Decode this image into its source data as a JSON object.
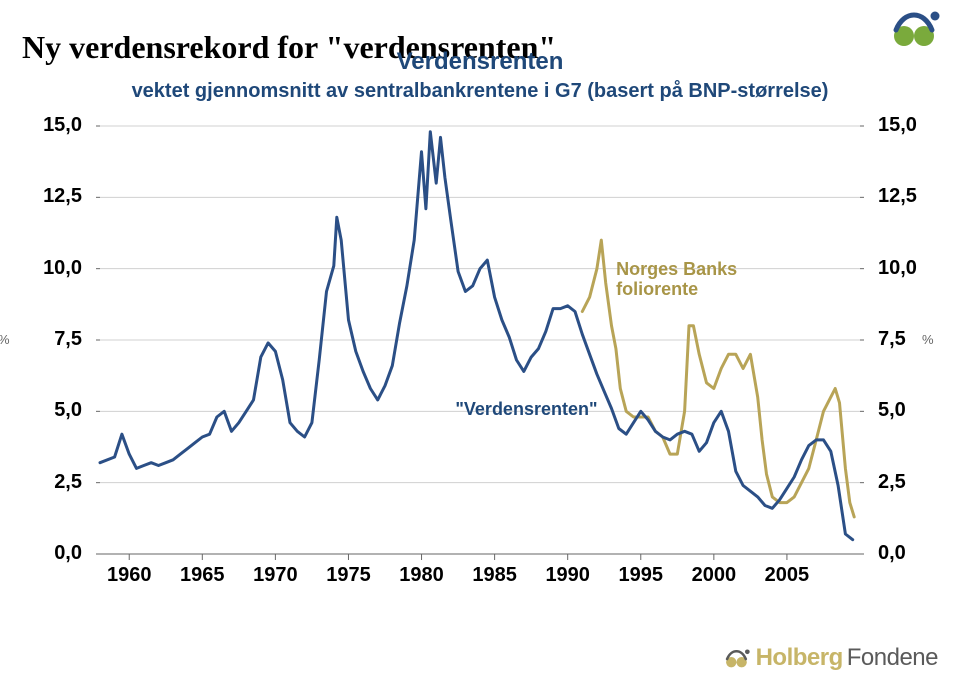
{
  "page_title": "Ny verdensrekord for \"verdensrenten\"",
  "chart": {
    "type": "line",
    "title": "Verdensrenten",
    "subtitle": "vektet gjennomsnitt av sentralbankrentene i G7 (basert på BNP-størrelse)",
    "background_color": "#ffffff",
    "grid_color": "#d0d0d0",
    "axis_color": "#666666",
    "xlim_year": [
      1958,
      2010
    ],
    "ylim": [
      0,
      15
    ],
    "ytick_step": 2.5,
    "yticks": [
      "0,0",
      "2,5",
      "5,0",
      "7,5",
      "10,0",
      "12,5",
      "15,0"
    ],
    "xticks_year": [
      1960,
      1965,
      1970,
      1975,
      1980,
      1985,
      1990,
      1995,
      2000,
      2005
    ],
    "y_unit_left": "%",
    "y_unit_right": "%",
    "title_fontsize": 24,
    "subtitle_fontsize": 20,
    "tick_fontsize": 20,
    "series": [
      {
        "name": "\"Verdensrenten\"",
        "label": "\"Verdensrenten\"",
        "color": "#2b4f86",
        "line_width": 3,
        "data": [
          [
            1958,
            3.2
          ],
          [
            1959,
            3.4
          ],
          [
            1959.5,
            4.2
          ],
          [
            1960,
            3.5
          ],
          [
            1960.5,
            3.0
          ],
          [
            1961,
            3.1
          ],
          [
            1961.5,
            3.2
          ],
          [
            1962,
            3.1
          ],
          [
            1962.5,
            3.2
          ],
          [
            1963,
            3.3
          ],
          [
            1963.5,
            3.5
          ],
          [
            1964,
            3.7
          ],
          [
            1964.5,
            3.9
          ],
          [
            1965,
            4.1
          ],
          [
            1965.5,
            4.2
          ],
          [
            1966,
            4.8
          ],
          [
            1966.5,
            5.0
          ],
          [
            1967,
            4.3
          ],
          [
            1967.5,
            4.6
          ],
          [
            1968,
            5.0
          ],
          [
            1968.5,
            5.4
          ],
          [
            1969,
            6.9
          ],
          [
            1969.5,
            7.4
          ],
          [
            1970,
            7.1
          ],
          [
            1970.5,
            6.1
          ],
          [
            1971,
            4.6
          ],
          [
            1971.5,
            4.3
          ],
          [
            1972,
            4.1
          ],
          [
            1972.5,
            4.6
          ],
          [
            1973,
            6.8
          ],
          [
            1973.5,
            9.2
          ],
          [
            1974,
            10.1
          ],
          [
            1974.2,
            11.8
          ],
          [
            1974.5,
            11.0
          ],
          [
            1975,
            8.2
          ],
          [
            1975.5,
            7.1
          ],
          [
            1976,
            6.4
          ],
          [
            1976.5,
            5.8
          ],
          [
            1977,
            5.4
          ],
          [
            1977.5,
            5.9
          ],
          [
            1978,
            6.6
          ],
          [
            1978.5,
            8.1
          ],
          [
            1979,
            9.4
          ],
          [
            1979.5,
            11.0
          ],
          [
            1980,
            14.1
          ],
          [
            1980.3,
            12.1
          ],
          [
            1980.6,
            14.8
          ],
          [
            1981,
            13.0
          ],
          [
            1981.3,
            14.6
          ],
          [
            1981.6,
            13.2
          ],
          [
            1982,
            11.7
          ],
          [
            1982.5,
            9.9
          ],
          [
            1983,
            9.2
          ],
          [
            1983.5,
            9.4
          ],
          [
            1984,
            10.0
          ],
          [
            1984.5,
            10.3
          ],
          [
            1985,
            9.0
          ],
          [
            1985.5,
            8.2
          ],
          [
            1986,
            7.6
          ],
          [
            1986.5,
            6.8
          ],
          [
            1987,
            6.4
          ],
          [
            1987.5,
            6.9
          ],
          [
            1988,
            7.2
          ],
          [
            1988.5,
            7.8
          ],
          [
            1989,
            8.6
          ],
          [
            1989.5,
            8.6
          ],
          [
            1990,
            8.7
          ],
          [
            1990.5,
            8.5
          ],
          [
            1991,
            7.7
          ],
          [
            1991.5,
            7.0
          ],
          [
            1992,
            6.3
          ],
          [
            1992.5,
            5.7
          ],
          [
            1993,
            5.1
          ],
          [
            1993.5,
            4.4
          ],
          [
            1994,
            4.2
          ],
          [
            1994.5,
            4.6
          ],
          [
            1995,
            5.0
          ],
          [
            1995.5,
            4.7
          ],
          [
            1996,
            4.3
          ],
          [
            1996.5,
            4.1
          ],
          [
            1997,
            4.0
          ],
          [
            1997.5,
            4.2
          ],
          [
            1998,
            4.3
          ],
          [
            1998.5,
            4.2
          ],
          [
            1999,
            3.6
          ],
          [
            1999.5,
            3.9
          ],
          [
            2000,
            4.6
          ],
          [
            2000.5,
            5.0
          ],
          [
            2001,
            4.3
          ],
          [
            2001.5,
            2.9
          ],
          [
            2002,
            2.4
          ],
          [
            2002.5,
            2.2
          ],
          [
            2003,
            2.0
          ],
          [
            2003.5,
            1.7
          ],
          [
            2004,
            1.6
          ],
          [
            2004.5,
            1.9
          ],
          [
            2005,
            2.3
          ],
          [
            2005.5,
            2.7
          ],
          [
            2006,
            3.3
          ],
          [
            2006.5,
            3.8
          ],
          [
            2007,
            4.0
          ],
          [
            2007.5,
            4.0
          ],
          [
            2008,
            3.6
          ],
          [
            2008.5,
            2.4
          ],
          [
            2009,
            0.7
          ],
          [
            2009.5,
            0.5
          ]
        ]
      },
      {
        "name": "Norges Banks foliorente",
        "label_line1": "Norges Banks",
        "label_line2": "foliorente",
        "color": "#b8a457",
        "line_width": 3,
        "data": [
          [
            1991,
            8.5
          ],
          [
            1991.5,
            9.0
          ],
          [
            1992,
            10.0
          ],
          [
            1992.3,
            11.0
          ],
          [
            1992.6,
            9.5
          ],
          [
            1993,
            8.0
          ],
          [
            1993.3,
            7.2
          ],
          [
            1993.6,
            5.8
          ],
          [
            1994,
            5.0
          ],
          [
            1994.5,
            4.8
          ],
          [
            1995,
            4.8
          ],
          [
            1995.5,
            4.8
          ],
          [
            1996,
            4.3
          ],
          [
            1996.5,
            4.1
          ],
          [
            1997,
            3.5
          ],
          [
            1997.5,
            3.5
          ],
          [
            1998,
            5.0
          ],
          [
            1998.3,
            8.0
          ],
          [
            1998.6,
            8.0
          ],
          [
            1999,
            7.0
          ],
          [
            1999.5,
            6.0
          ],
          [
            2000,
            5.8
          ],
          [
            2000.5,
            6.5
          ],
          [
            2001,
            7.0
          ],
          [
            2001.5,
            7.0
          ],
          [
            2002,
            6.5
          ],
          [
            2002.5,
            7.0
          ],
          [
            2003,
            5.5
          ],
          [
            2003.3,
            4.0
          ],
          [
            2003.6,
            2.8
          ],
          [
            2004,
            2.0
          ],
          [
            2004.5,
            1.8
          ],
          [
            2005,
            1.8
          ],
          [
            2005.5,
            2.0
          ],
          [
            2006,
            2.5
          ],
          [
            2006.5,
            3.0
          ],
          [
            2007,
            4.0
          ],
          [
            2007.5,
            5.0
          ],
          [
            2008,
            5.5
          ],
          [
            2008.3,
            5.8
          ],
          [
            2008.6,
            5.3
          ],
          [
            2009,
            3.0
          ],
          [
            2009.3,
            1.8
          ],
          [
            2009.6,
            1.3
          ]
        ]
      }
    ],
    "annotations": {
      "verdensrenten": {
        "text": "\"Verdensrenten\"",
        "x_year": 1983,
        "y_val": 5.0
      },
      "norges_bank": {
        "x_year": 1994,
        "y_val": 9.8
      }
    }
  },
  "logo": {
    "brand_part1": "Holberg",
    "brand_part2": "Fondene",
    "brand_color1": "#c7b568",
    "brand_color2": "#5a5a5a",
    "icon_green": "#7aaa3c",
    "icon_dark": "#2b4f86"
  }
}
